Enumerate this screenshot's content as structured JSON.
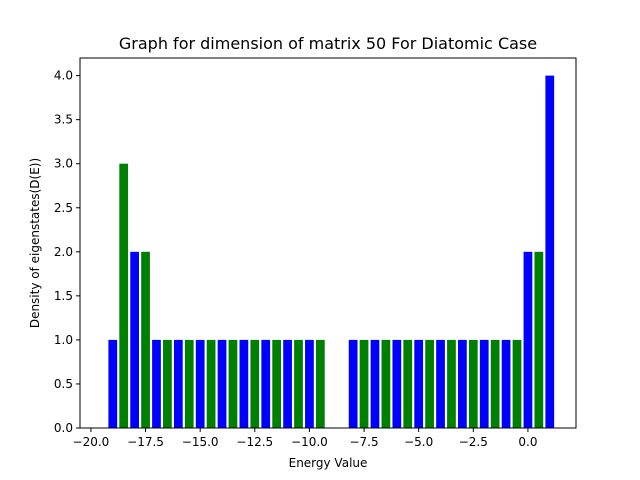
{
  "chart_data": {
    "type": "bar",
    "title": "Graph for dimension of matrix 50 For Diatomic Case",
    "xlabel": "Energy Value",
    "ylabel": "Density of eigenstates(D(E))",
    "xlim": [
      -20.5,
      2.2
    ],
    "ylim": [
      0,
      4.2
    ],
    "xticks": [
      -20.0,
      -17.5,
      -15.0,
      -12.5,
      -10.0,
      -7.5,
      -5.0,
      -2.5,
      0.0
    ],
    "xtick_labels": [
      "−20.0",
      "−17.5",
      "−15.0",
      "−12.5",
      "−10.0",
      "−7.5",
      "−5.0",
      "−2.5",
      "0.0"
    ],
    "yticks": [
      0.0,
      0.5,
      1.0,
      1.5,
      2.0,
      2.5,
      3.0,
      3.5,
      4.0
    ],
    "ytick_labels": [
      "0.0",
      "0.5",
      "1.0",
      "1.5",
      "2.0",
      "2.5",
      "3.0",
      "3.5",
      "4.0"
    ],
    "bar_width": 0.4,
    "grid": false,
    "series": [
      {
        "color": "#0000ff",
        "x": [
          -19.0,
          -18.0,
          -17.0,
          -16.0,
          -15.0,
          -14.0,
          -13.0,
          -12.0,
          -11.0,
          -10.0,
          -8.0,
          -7.0,
          -6.0,
          -5.0,
          -4.0,
          -3.0,
          -2.0,
          -1.0,
          0.0,
          1.0
        ],
        "values": [
          1,
          2,
          1,
          1,
          1,
          1,
          1,
          1,
          1,
          1,
          1,
          1,
          1,
          1,
          1,
          1,
          1,
          1,
          2,
          4
        ]
      },
      {
        "color": "#008000",
        "x": [
          -18.5,
          -17.5,
          -16.5,
          -15.5,
          -14.5,
          -13.5,
          -12.5,
          -11.5,
          -10.5,
          -9.5,
          -7.5,
          -6.5,
          -5.5,
          -4.5,
          -3.5,
          -2.5,
          -1.5,
          -0.5,
          0.5
        ],
        "values": [
          3,
          2,
          1,
          1,
          1,
          1,
          1,
          1,
          1,
          1,
          1,
          1,
          1,
          1,
          1,
          1,
          1,
          1,
          2
        ]
      }
    ]
  }
}
